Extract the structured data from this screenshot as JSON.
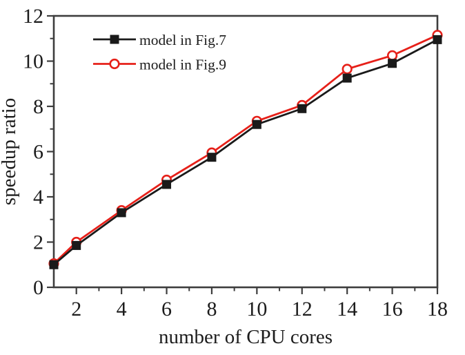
{
  "chart_data": {
    "type": "line",
    "title": "",
    "xlabel": "number of CPU cores",
    "ylabel": "speedup ratio",
    "xlim": [
      1,
      18
    ],
    "ylim": [
      0,
      12
    ],
    "x_major_ticks": [
      2,
      4,
      6,
      8,
      10,
      12,
      14,
      16,
      18
    ],
    "x_minor_ticks": [
      3,
      5,
      7,
      9,
      11,
      13,
      15,
      17
    ],
    "y_major_ticks": [
      0,
      2,
      4,
      6,
      8,
      10,
      12
    ],
    "y_minor_ticks": [
      1,
      3,
      5,
      7,
      9,
      11
    ],
    "grid": false,
    "legend": {
      "position": "top-left-inside",
      "entries": [
        "model in Fig.7",
        "model in Fig.9"
      ]
    },
    "x": [
      1,
      2,
      4,
      6,
      8,
      10,
      12,
      14,
      16,
      18
    ],
    "series": [
      {
        "name": "model in Fig.7",
        "color": "#1a1a1a",
        "marker": "filled-square",
        "values": [
          1.0,
          1.85,
          3.3,
          4.55,
          5.75,
          7.2,
          7.9,
          9.25,
          9.9,
          10.95
        ]
      },
      {
        "name": "model in Fig.9",
        "color": "#e62019",
        "marker": "open-circle",
        "values": [
          1.05,
          2.0,
          3.4,
          4.75,
          5.95,
          7.35,
          8.05,
          9.65,
          10.25,
          11.15
        ]
      }
    ],
    "colors": {
      "axis": "#3d3d3d",
      "text": "#1c1c1c",
      "background": "#ffffff"
    }
  }
}
